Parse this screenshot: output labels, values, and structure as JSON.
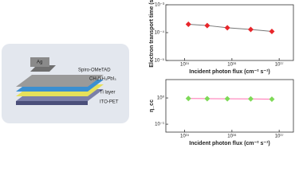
{
  "diagram": {
    "labels": [
      "Ag",
      "Spiro-OMeTAD",
      "CH₃NH₃PbI₃",
      "Ti layer",
      "ITO-PET"
    ]
  },
  "chart_data": [
    {
      "type": "line",
      "y_label": "Electron transport time (s)",
      "x_label": "Incident photon flux (cm⁻² s⁻¹)",
      "x": [
        1200000000000000.0,
        3000000000000000.0,
        8000000000000000.0,
        2.5e+16,
        7e+16
      ],
      "series": [
        {
          "color": "#777777",
          "marker_color": "#e8262b",
          "values": [
            0.0002,
            0.00018,
            0.00015,
            0.00013,
            0.00011
          ]
        }
      ],
      "xscale": "log",
      "yscale": "log",
      "xlim": [
        400000000000000.0,
        2e+17
      ],
      "ylim": [
        1e-05,
        0.001
      ],
      "xticks": [
        {
          "value": 1000000000000000.0,
          "label": "10¹⁵"
        },
        {
          "value": 1e+16,
          "label": "10¹⁶"
        },
        {
          "value": 1e+17,
          "label": "10¹⁷"
        }
      ],
      "yticks": [
        {
          "value": 1e-05,
          "label": "10⁻⁵"
        },
        {
          "value": 0.0001,
          "label": "10⁻⁴"
        },
        {
          "value": 0.001,
          "label": "10⁻³"
        }
      ]
    },
    {
      "type": "line",
      "y_label": "η_cc",
      "x_label": "Incident photon flux (cm⁻² s⁻¹)",
      "x": [
        1200000000000000.0,
        3000000000000000.0,
        8000000000000000.0,
        2.5e+16,
        7e+16
      ],
      "series": [
        {
          "color": "#ff6fb0",
          "marker_color": "#7ed957",
          "values": [
            0.95,
            0.94,
            0.93,
            0.92,
            0.9
          ]
        }
      ],
      "xscale": "log",
      "yscale": "log",
      "xlim": [
        400000000000000.0,
        2e+17
      ],
      "ylim": [
        0.05,
        5
      ],
      "xticks": [
        {
          "value": 1000000000000000.0,
          "label": "10¹⁵"
        },
        {
          "value": 1e+16,
          "label": "10¹⁶"
        },
        {
          "value": 1e+17,
          "label": "10¹⁷"
        }
      ],
      "yticks": [
        {
          "value": 0.1,
          "label": "10⁻¹"
        },
        {
          "value": 1,
          "label": "10⁰"
        }
      ]
    }
  ]
}
